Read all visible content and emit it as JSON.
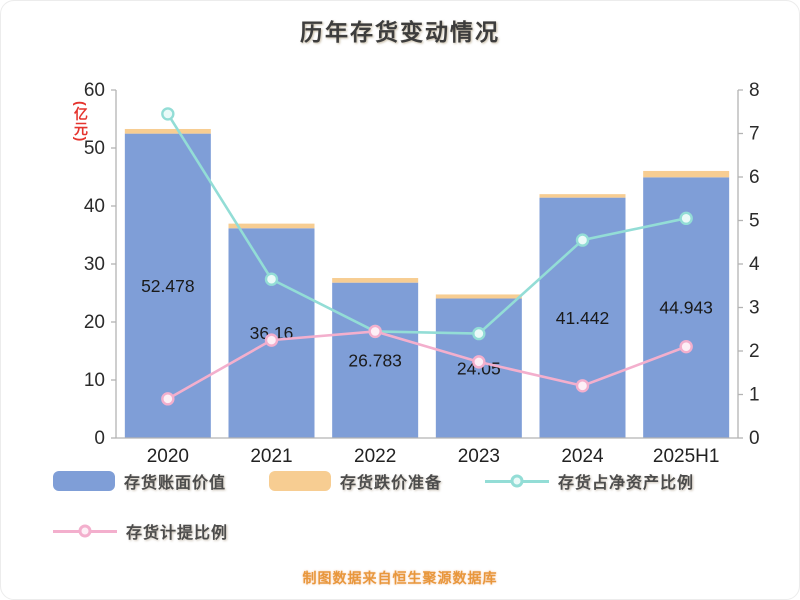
{
  "title": "历年存货变动情况",
  "left_axis_unit": "(亿元)",
  "footer": "制图数据来自恒生聚源数据库",
  "legend": [
    {
      "label": "存货账面价值",
      "type": "bar",
      "color": "#7f9ed7",
      "marker_fill": "#7f9ed7"
    },
    {
      "label": "存货跌价准备",
      "type": "bar",
      "color": "#f7cd92",
      "marker_fill": "#f7cd92"
    },
    {
      "label": "存货占净资产比例",
      "type": "line",
      "color": "#93ddd6",
      "marker_fill": "#eafaf8"
    },
    {
      "label": "存货计提比例",
      "type": "line",
      "color": "#f3afcd",
      "marker_fill": "#fdeff6"
    }
  ],
  "chart_data": {
    "type": "bar+line combo",
    "categories": [
      "2020",
      "2021",
      "2022",
      "2023",
      "2024",
      "2025H1"
    ],
    "left_axis": {
      "ticks": [
        0,
        10,
        20,
        30,
        40,
        50,
        60
      ],
      "range": [
        0,
        60
      ],
      "unit": "亿元"
    },
    "right_axis": {
      "ticks": [
        0,
        1,
        2,
        3,
        4,
        5,
        6,
        7,
        8
      ],
      "range": [
        0,
        8
      ]
    },
    "grid": "off",
    "legend_position": "bottom",
    "series": [
      {
        "name": "存货账面价值",
        "type": "bar",
        "axis": "left",
        "values": [
          52.478,
          36.16,
          26.783,
          24.05,
          41.442,
          44.943
        ],
        "labels": [
          "52.478",
          "36.16",
          "26.783",
          "24.05",
          "41.442",
          "44.943"
        ]
      },
      {
        "name": "存货跌价准备",
        "type": "bar-cap",
        "axis": "left",
        "values": [
          0.8,
          0.8,
          0.8,
          0.7,
          0.6,
          1.1
        ]
      },
      {
        "name": "存货占净资产比例",
        "type": "line",
        "axis": "right",
        "values": [
          7.45,
          3.65,
          2.45,
          2.4,
          4.55,
          5.05
        ]
      },
      {
        "name": "存货计提比例",
        "type": "line",
        "axis": "right",
        "values": [
          0.9,
          2.25,
          2.45,
          1.75,
          1.2,
          2.1
        ]
      }
    ]
  }
}
